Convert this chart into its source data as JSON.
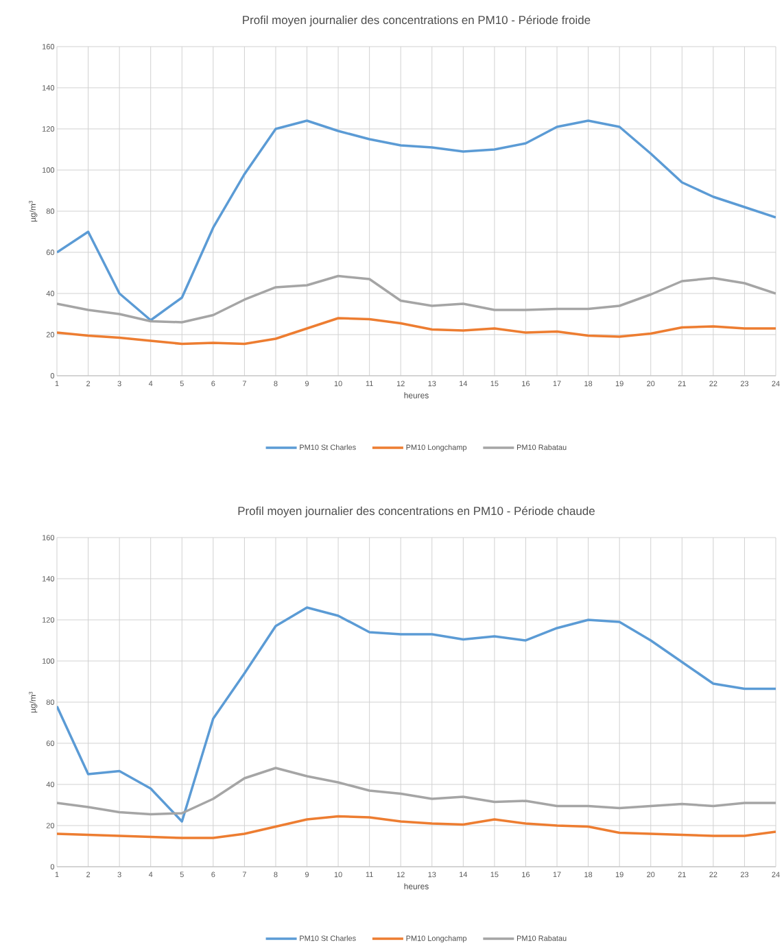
{
  "chart_data": [
    {
      "type": "line",
      "title": "Profil moyen journalier des concentrations en PM10  - Période froide",
      "xlabel": "heures",
      "ylabel": "µg/m$^{3}$",
      "x": [
        1,
        2,
        3,
        4,
        5,
        6,
        7,
        8,
        9,
        10,
        11,
        12,
        13,
        14,
        15,
        16,
        17,
        18,
        19,
        20,
        21,
        22,
        23,
        24
      ],
      "xlim": [
        1,
        24
      ],
      "xticks": [
        1,
        2,
        3,
        4,
        5,
        6,
        7,
        8,
        9,
        10,
        11,
        12,
        13,
        14,
        15,
        16,
        17,
        18,
        19,
        20,
        21,
        22,
        23,
        24
      ],
      "ylim": [
        0,
        160
      ],
      "yticks": [
        0,
        20,
        40,
        60,
        80,
        100,
        120,
        140,
        160
      ],
      "grid": true,
      "legend": "bottom",
      "series": [
        {
          "name": "PM10 St Charles",
          "color": "#5b9bd5",
          "values": [
            60,
            70,
            40,
            27,
            38,
            72,
            98,
            120,
            124,
            119,
            115,
            112,
            111,
            109,
            110,
            113,
            121,
            124,
            121,
            108,
            94,
            87,
            82,
            77
          ]
        },
        {
          "name": "PM10 Longchamp",
          "color": "#ed7d31",
          "values": [
            21,
            19.5,
            18.5,
            17,
            15.5,
            16,
            15.5,
            18,
            23,
            28,
            27.5,
            25.5,
            22.5,
            22,
            23,
            21,
            21.5,
            19.5,
            19,
            20.5,
            23.5,
            24,
            23,
            23
          ]
        },
        {
          "name": "PM10 Rabatau",
          "color": "#a5a5a5",
          "values": [
            35,
            32,
            30,
            26.5,
            26,
            29.5,
            37,
            43,
            44,
            48.5,
            47,
            36.5,
            34,
            35,
            32,
            32,
            32.5,
            32.5,
            34,
            39.5,
            46,
            47.5,
            45,
            40
          ]
        }
      ]
    },
    {
      "type": "line",
      "title": "Profil moyen journalier des concentrations en PM10 - Période chaude",
      "xlabel": "heures",
      "ylabel": "µg/m$^{3}$",
      "x": [
        1,
        2,
        3,
        4,
        5,
        6,
        7,
        8,
        9,
        10,
        11,
        12,
        13,
        14,
        15,
        16,
        17,
        18,
        19,
        20,
        21,
        22,
        23,
        24
      ],
      "xlim": [
        1,
        24
      ],
      "xticks": [
        1,
        2,
        3,
        4,
        5,
        6,
        7,
        8,
        9,
        10,
        11,
        12,
        13,
        14,
        15,
        16,
        17,
        18,
        19,
        20,
        21,
        22,
        23,
        24
      ],
      "ylim": [
        0,
        160
      ],
      "yticks": [
        0,
        20,
        40,
        60,
        80,
        100,
        120,
        140,
        160
      ],
      "grid": true,
      "legend": "bottom",
      "series": [
        {
          "name": "PM10 St Charles",
          "color": "#5b9bd5",
          "values": [
            78,
            45,
            46.5,
            38,
            22,
            72,
            94,
            117,
            126,
            122,
            114,
            113,
            113,
            110.5,
            112,
            110,
            116,
            120,
            119,
            110,
            99.5,
            89,
            86.5,
            86.5
          ]
        },
        {
          "name": "PM10 Longchamp",
          "color": "#ed7d31",
          "values": [
            16,
            15.5,
            15,
            14.5,
            14,
            14,
            16,
            19.5,
            23,
            24.5,
            24,
            22,
            21,
            20.5,
            23,
            21,
            20,
            19.5,
            16.5,
            16,
            15.5,
            15,
            15,
            17
          ]
        },
        {
          "name": "PM10 Rabatau",
          "color": "#a5a5a5",
          "values": [
            31,
            29,
            26.5,
            25.5,
            26,
            33,
            43,
            48,
            44,
            41,
            37,
            35.5,
            33,
            34,
            31.5,
            32,
            29.5,
            29.5,
            28.5,
            29.5,
            30.5,
            29.5,
            31,
            31
          ]
        }
      ]
    }
  ]
}
